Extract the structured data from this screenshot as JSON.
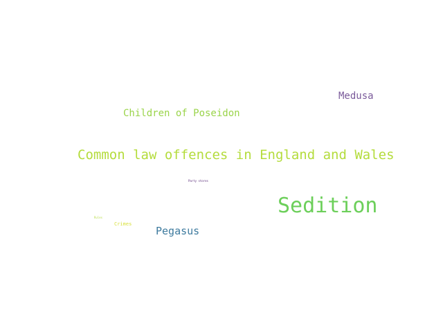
{
  "wordcloud": {
    "words": [
      {
        "id": "medusa",
        "text": "Medusa",
        "color": "#7a5a9a"
      },
      {
        "id": "children",
        "text": "Children of Poseidon",
        "color": "#9ad44a"
      },
      {
        "id": "common",
        "text": "Common law offences in England and Wales",
        "color": "#b4dc3c"
      },
      {
        "id": "party",
        "text": "Party stores",
        "color": "#5a2d7a"
      },
      {
        "id": "sedition",
        "text": "Sedition",
        "color": "#6ccf5a"
      },
      {
        "id": "rules",
        "text": "Rules",
        "color": "#b8dc4a"
      },
      {
        "id": "crimes",
        "text": "Crimes",
        "color": "#d8e03c"
      },
      {
        "id": "pegasus",
        "text": "Pegasus",
        "color": "#3d7a9e"
      }
    ]
  }
}
